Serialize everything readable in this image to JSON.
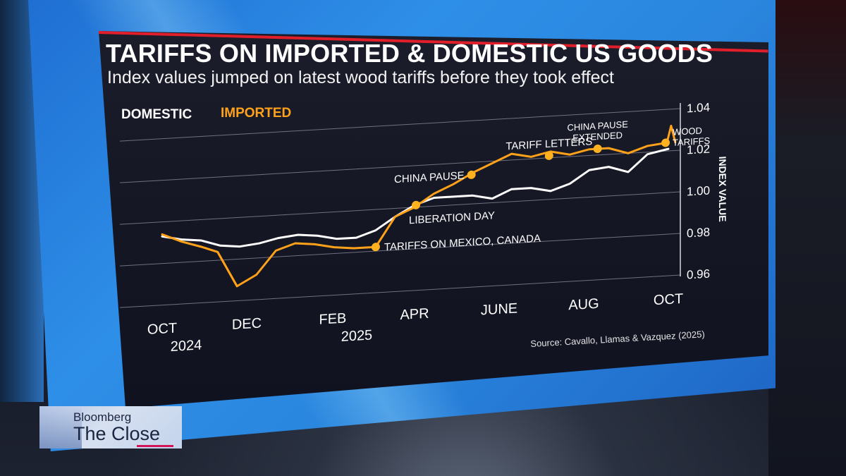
{
  "header": {
    "title": "TARIFFS ON IMPORTED & DOMESTIC US GOODS",
    "subtitle": "Index values jumped on latest wood tariffs before they took effect"
  },
  "legend": {
    "domestic": "DOMESTIC",
    "imported": "IMPORTED"
  },
  "source": "Source: Cavallo, Llamas & Vazquez (2025)",
  "lower_third": {
    "brand": "Bloomberg",
    "show": "The Close"
  },
  "colors": {
    "domestic": "#ffffff",
    "imported": "#ffa21a",
    "accent": "#e11f2a",
    "screen": "#2a86de"
  },
  "chart_data": {
    "type": "line",
    "title": "TARIFFS ON IMPORTED & DOMESTIC US GOODS",
    "subtitle": "Index values jumped on latest wood tariffs before they took effect",
    "xlabel": "",
    "ylabel": "INDEX VALUE",
    "ylim": [
      0.96,
      1.04
    ],
    "xlim": [
      "2024-09-25",
      "2025-10-20"
    ],
    "yticks": [
      "1.04",
      "1.02",
      "1.00",
      "0.98",
      "0.96"
    ],
    "yticks_values": [
      1.04,
      1.02,
      1.0,
      0.98,
      0.96
    ],
    "xticks": [
      {
        "date": "2024-10-01",
        "label": "OCT",
        "year": "2024"
      },
      {
        "date": "2024-12-01",
        "label": "DEC",
        "year": ""
      },
      {
        "date": "2025-02-01",
        "label": "FEB",
        "year": "2025"
      },
      {
        "date": "2025-04-01",
        "label": "APR",
        "year": ""
      },
      {
        "date": "2025-06-01",
        "label": "JUNE",
        "year": ""
      },
      {
        "date": "2025-08-01",
        "label": "AUG",
        "year": ""
      },
      {
        "date": "2025-10-01",
        "label": "OCT",
        "year": ""
      }
    ],
    "grid": true,
    "legend": "top-left",
    "series": [
      {
        "name": "DOMESTIC",
        "color": "#ffffff",
        "points": [
          [
            "2024-10-01",
            0.993
          ],
          [
            "2024-10-15",
            0.991
          ],
          [
            "2024-10-29",
            0.99
          ],
          [
            "2024-11-12",
            0.987
          ],
          [
            "2024-11-26",
            0.986
          ],
          [
            "2024-12-10",
            0.987
          ],
          [
            "2024-12-24",
            0.989
          ],
          [
            "2025-01-07",
            0.99
          ],
          [
            "2025-01-21",
            0.989
          ],
          [
            "2025-02-04",
            0.987
          ],
          [
            "2025-02-18",
            0.987
          ],
          [
            "2025-03-04",
            0.99
          ],
          [
            "2025-03-18",
            0.996
          ],
          [
            "2025-04-01",
            1.001
          ],
          [
            "2025-04-15",
            1.004
          ],
          [
            "2025-04-29",
            1.004
          ],
          [
            "2025-05-13",
            1.004
          ],
          [
            "2025-05-27",
            1.002
          ],
          [
            "2025-06-10",
            1.006
          ],
          [
            "2025-06-24",
            1.006
          ],
          [
            "2025-07-08",
            1.004
          ],
          [
            "2025-07-22",
            1.007
          ],
          [
            "2025-08-05",
            1.013
          ],
          [
            "2025-08-19",
            1.014
          ],
          [
            "2025-09-02",
            1.011
          ],
          [
            "2025-09-16",
            1.019
          ],
          [
            "2025-10-01",
            1.021
          ]
        ]
      },
      {
        "name": "IMPORTED",
        "color": "#ffa21a",
        "points": [
          [
            "2024-10-01",
            0.994
          ],
          [
            "2024-10-15",
            0.99
          ],
          [
            "2024-10-29",
            0.987
          ],
          [
            "2024-11-10",
            0.984
          ],
          [
            "2024-11-24",
            0.967
          ],
          [
            "2024-12-08",
            0.972
          ],
          [
            "2024-12-22",
            0.983
          ],
          [
            "2025-01-05",
            0.986
          ],
          [
            "2025-01-19",
            0.985
          ],
          [
            "2025-02-02",
            0.983
          ],
          [
            "2025-02-16",
            0.982
          ],
          [
            "2025-03-04",
            0.982
          ],
          [
            "2025-03-18",
            0.996
          ],
          [
            "2025-04-01",
            1.0
          ],
          [
            "2025-04-15",
            1.006
          ],
          [
            "2025-04-29",
            1.01
          ],
          [
            "2025-05-13",
            1.015
          ],
          [
            "2025-05-27",
            1.019
          ],
          [
            "2025-06-10",
            1.023
          ],
          [
            "2025-06-24",
            1.021
          ],
          [
            "2025-07-08",
            1.023
          ],
          [
            "2025-07-22",
            1.021
          ],
          [
            "2025-08-05",
            1.023
          ],
          [
            "2025-08-19",
            1.023
          ],
          [
            "2025-09-02",
            1.02
          ],
          [
            "2025-09-16",
            1.023
          ],
          [
            "2025-09-30",
            1.024
          ],
          [
            "2025-10-03",
            1.032
          ],
          [
            "2025-10-06",
            1.024
          ]
        ]
      }
    ],
    "annotations": [
      {
        "date": "2025-03-04",
        "y": 0.982,
        "label": "TARIFFS ON MEXICO, CANADA",
        "pos": "right"
      },
      {
        "date": "2025-04-02",
        "y": 1.001,
        "label": "LIBERATION DAY",
        "pos": "below"
      },
      {
        "date": "2025-05-12",
        "y": 1.014,
        "label": "CHINA PAUSE",
        "pos": "left"
      },
      {
        "date": "2025-07-07",
        "y": 1.021,
        "label": "TARIFF LETTERS",
        "pos": "above"
      },
      {
        "date": "2025-08-11",
        "y": 1.023,
        "label": "CHINA PAUSE EXTENDED",
        "pos": "above"
      },
      {
        "date": "2025-09-29",
        "y": 1.024,
        "label": "WOOD TARIFFS",
        "pos": "right"
      }
    ]
  }
}
